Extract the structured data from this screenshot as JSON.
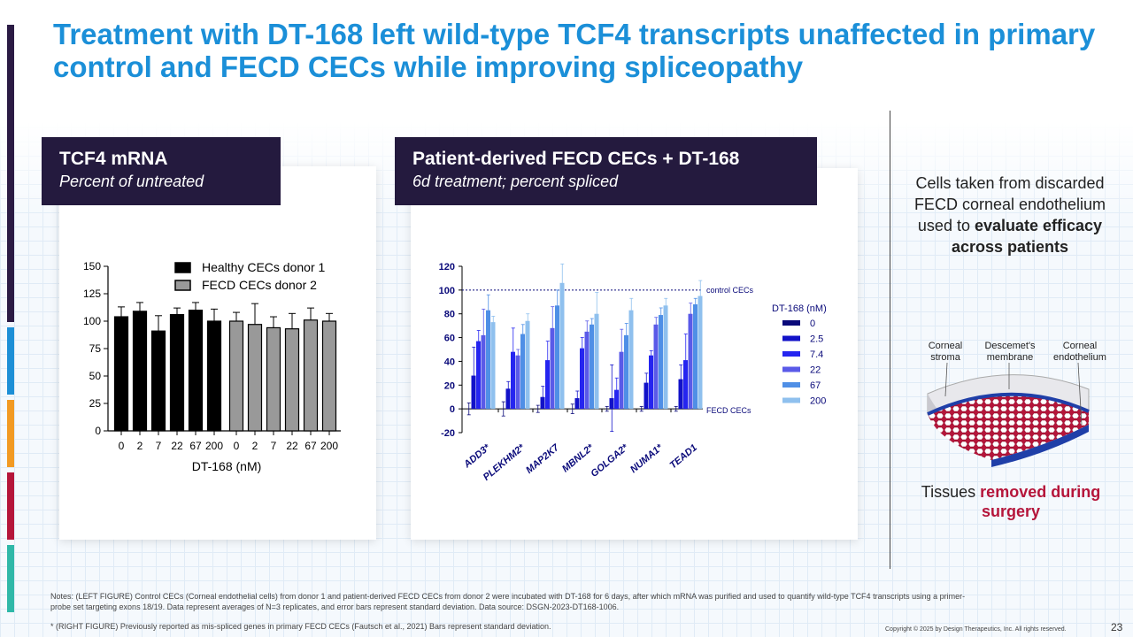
{
  "title": "Treatment with DT-168 left wild-type TCF4 transcripts unaffected in primary control and FECD CECs while improving spliceopathy",
  "sidebar_colors": [
    "#2b1b44",
    "#1d8fd6",
    "#f29a22",
    "#b5153a",
    "#2fb8a8"
  ],
  "left_panel": {
    "heading": "TCF4 mRNA",
    "subheading": "Percent of untreated"
  },
  "right_panel": {
    "heading": "Patient-derived FECD CECs + DT-168",
    "subheading": "6d treatment; percent spliced"
  },
  "chart_data": [
    {
      "type": "bar",
      "title": "TCF4 mRNA",
      "xlabel": "DT-168 (nM)",
      "ylabel": "Percent of untreated",
      "ylim": [
        0,
        150
      ],
      "yticks": [
        0,
        25,
        50,
        75,
        100,
        125,
        150
      ],
      "categories": [
        "0",
        "2",
        "7",
        "22",
        "67",
        "200"
      ],
      "legend_position": "top-right",
      "series": [
        {
          "name": "Healthy CECs donor 1",
          "color": "#000000",
          "values": [
            104,
            109,
            91,
            106,
            110,
            100
          ],
          "errors": [
            9,
            8,
            14,
            6,
            7,
            11
          ]
        },
        {
          "name": "FECD CECs donor 2",
          "color": "#999999",
          "values": [
            100,
            97,
            94,
            93,
            101,
            100
          ],
          "errors": [
            8,
            19,
            10,
            14,
            11,
            7
          ]
        }
      ]
    },
    {
      "type": "bar",
      "title": "Patient-derived FECD CECs + DT-168",
      "subtitle": "6d treatment; percent spliced",
      "ylim": [
        -20,
        120
      ],
      "yticks": [
        -20,
        0,
        20,
        40,
        60,
        80,
        100,
        120
      ],
      "categories": [
        "ADD3*",
        "PLEKHM2*",
        "MAP2K7",
        "MBNL2*",
        "GOLGA2*",
        "NUMA1*",
        "TEAD1"
      ],
      "legend_title": "DT-168 (nM)",
      "legend_position": "right",
      "reference_lines": [
        {
          "label": "control CECs",
          "y": 100
        },
        {
          "label": "FECD CECs",
          "y": 0
        }
      ],
      "series": [
        {
          "name": "0",
          "color": "#0a0a7a",
          "values": [
            0,
            0,
            0,
            0,
            0,
            0,
            0
          ],
          "errors": [
            5,
            6,
            3,
            4,
            2,
            2,
            2
          ]
        },
        {
          "name": "2.5",
          "color": "#1212c8",
          "values": [
            28,
            17,
            10,
            9,
            9,
            22,
            25
          ],
          "errors": [
            24,
            6,
            9,
            6,
            28,
            8,
            12
          ]
        },
        {
          "name": "7.4",
          "color": "#2525f0",
          "values": [
            57,
            48,
            41,
            51,
            16,
            45,
            41
          ],
          "errors": [
            9,
            20,
            16,
            9,
            10,
            4,
            22
          ]
        },
        {
          "name": "22",
          "color": "#5a5ae8",
          "values": [
            62,
            45,
            68,
            65,
            48,
            71,
            80
          ],
          "errors": [
            22,
            5,
            18,
            9,
            19,
            6,
            9
          ]
        },
        {
          "name": "67",
          "color": "#4f8fe6",
          "values": [
            83,
            63,
            87,
            71,
            62,
            79,
            88
          ],
          "errors": [
            13,
            8,
            13,
            5,
            10,
            6,
            5
          ]
        },
        {
          "name": "200",
          "color": "#8fc0ee",
          "values": [
            73,
            74,
            106,
            80,
            83,
            87,
            95
          ],
          "errors": [
            5,
            6,
            16,
            18,
            10,
            6,
            13
          ]
        }
      ]
    }
  ],
  "side": {
    "text_plain": "Cells taken from discarded FECD corneal endothelium used to",
    "text_bold": "evaluate efficacy across patients",
    "labels": [
      "Corneal stroma",
      "Descemet's membrane",
      "Corneal endothelium"
    ],
    "caption_plain": "Tissues",
    "caption_red": "removed during surgery"
  },
  "notes": "Notes: (LEFT FIGURE) Control CECs (Corneal endothelial cells) from donor 1 and patient-derived FECD CECs from donor 2 were incubated with DT-168 for 6 days, after which mRNA was purified and used to quantify wild-type TCF4 transcripts using a primer-probe set targeting exons 18/19. Data represent averages of N=3 replicates, and error bars represent standard deviation. Data source: DSGN-2023-DT168-1006.",
  "notes2": "* (RIGHT FIGURE) Previously reported as mis-spliced genes in primary FECD CECs (Fautsch et al., 2021) Bars represent standard deviation.",
  "copyright": "Copyright © 2025 by Design Therapeutics, Inc. All rights reserved.",
  "page_number": "23"
}
